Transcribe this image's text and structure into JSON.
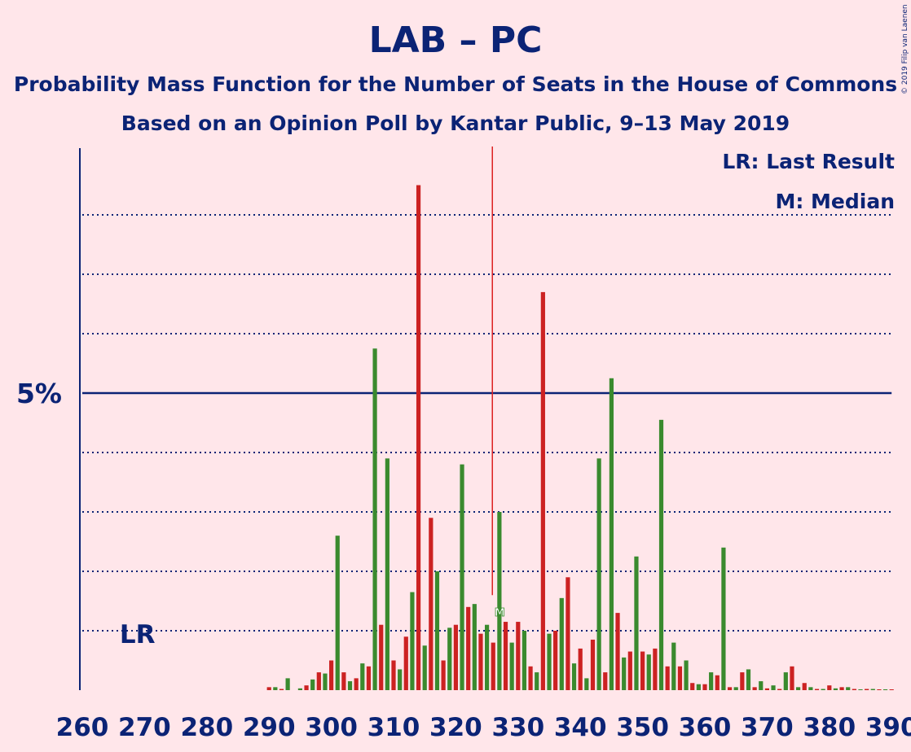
{
  "title": "LAB – PC",
  "subtitle": "Probability Mass Function for the Number of Seats in the House of Commons",
  "subtitle2": "Based on an Opinion Poll by Kantar Public, 9–13 May 2019",
  "legend": {
    "lr": "LR: Last Result",
    "median": "M: Median"
  },
  "copyright": "© 2019 Filip van Laenen",
  "colors": {
    "lab": "#cc2222",
    "pc": "#3a8a2e",
    "axis": "#0b2375",
    "background": "#ffe6ea"
  },
  "chart_data": {
    "type": "bar",
    "xlabel": "",
    "ylabel": "",
    "xlim": [
      260,
      390
    ],
    "x_ticks": [
      260,
      270,
      280,
      290,
      300,
      310,
      320,
      330,
      340,
      350,
      360,
      370,
      380,
      390
    ],
    "ylim": [
      0,
      9
    ],
    "y_tick_label": "5%",
    "y_tick_value": 5,
    "gridlines": [
      1,
      2,
      3,
      4,
      6,
      7,
      8
    ],
    "last_result": 266,
    "last_result_label": "LR",
    "median": 326,
    "median_label": "M",
    "series": [
      {
        "name": "LAB",
        "color": "#cc2222",
        "x": [
          290,
          292,
          296,
          298,
          300,
          302,
          304,
          306,
          308,
          310,
          312,
          314,
          316,
          318,
          320,
          322,
          324,
          326,
          328,
          330,
          332,
          334,
          336,
          338,
          340,
          342,
          344,
          346,
          348,
          350,
          352,
          354,
          356,
          358,
          360,
          362,
          364,
          366,
          368,
          370,
          372,
          374,
          376,
          378,
          380,
          382,
          384,
          386,
          388,
          390
        ],
        "values": [
          0.05,
          0.02,
          0.08,
          0.3,
          0.5,
          0.3,
          0.2,
          0.4,
          1.1,
          0.5,
          0.9,
          8.5,
          2.9,
          0.5,
          1.1,
          1.4,
          0.95,
          0.8,
          1.15,
          1.15,
          0.4,
          6.7,
          1.0,
          1.9,
          0.7,
          0.85,
          0.3,
          1.3,
          0.65,
          0.65,
          0.7,
          0.4,
          0.4,
          0.12,
          0.1,
          0.25,
          0.05,
          0.3,
          0.05,
          0.03,
          0.02,
          0.4,
          0.12,
          0.02,
          0.08,
          0.05,
          0.02,
          0.02,
          0.01,
          0.01
        ]
      },
      {
        "name": "PC",
        "color": "#3a8a2e",
        "x": [
          291,
          293,
          295,
          297,
          299,
          301,
          303,
          305,
          307,
          309,
          311,
          313,
          315,
          317,
          319,
          321,
          323,
          325,
          327,
          329,
          331,
          333,
          335,
          337,
          339,
          341,
          343,
          345,
          347,
          349,
          351,
          353,
          355,
          357,
          359,
          361,
          363,
          365,
          367,
          369,
          371,
          373,
          375,
          377,
          379,
          381,
          383,
          385,
          387,
          389
        ],
        "values": [
          0.05,
          0.2,
          0.03,
          0.18,
          0.28,
          2.6,
          0.15,
          0.45,
          5.75,
          3.9,
          0.35,
          1.65,
          0.75,
          2.0,
          1.05,
          3.8,
          1.45,
          1.1,
          3.0,
          0.8,
          1.0,
          0.3,
          0.95,
          1.55,
          0.45,
          0.2,
          3.9,
          5.25,
          0.55,
          2.25,
          0.6,
          4.55,
          0.8,
          0.5,
          0.1,
          0.3,
          2.4,
          0.05,
          0.35,
          0.15,
          0.08,
          0.3,
          0.05,
          0.05,
          0.02,
          0.03,
          0.05,
          0.01,
          0.02,
          0.01
        ]
      }
    ]
  }
}
